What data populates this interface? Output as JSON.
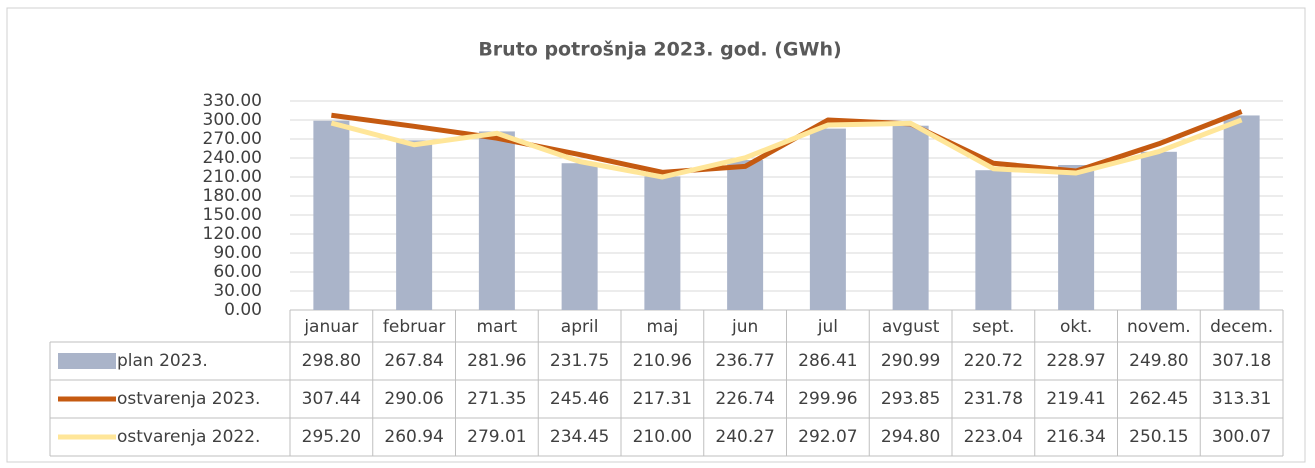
{
  "chart_data": {
    "type": "bar-line-table",
    "title": "Bruto potrošnja 2023.  god. (GWh)",
    "categories": [
      "januar",
      "februar",
      "mart",
      "april",
      "maj",
      "jun",
      "jul",
      "avgust",
      "sept.",
      "okt.",
      "novem.",
      "decem."
    ],
    "series": [
      {
        "name": "plan 2023.",
        "type": "bar",
        "color": "#aab4c9",
        "values": [
          298.8,
          267.84,
          281.96,
          231.75,
          210.96,
          236.77,
          286.41,
          290.99,
          220.72,
          228.97,
          249.8,
          307.18
        ],
        "value_labels": [
          "298.80",
          "267.84",
          "281.96",
          "231.75",
          "210.96",
          "236.77",
          "286.41",
          "290.99",
          "220.72",
          "228.97",
          "249.80",
          "307.18"
        ]
      },
      {
        "name": "ostvarenja 2023.",
        "type": "line",
        "color": "#c55a11",
        "values": [
          307.44,
          290.06,
          271.35,
          245.46,
          217.31,
          226.74,
          299.96,
          293.85,
          231.78,
          219.41,
          262.45,
          313.31
        ],
        "value_labels": [
          "307.44",
          "290.06",
          "271.35",
          "245.46",
          "217.31",
          "226.74",
          "299.96",
          "293.85",
          "231.78",
          "219.41",
          "262.45",
          "313.31"
        ]
      },
      {
        "name": "ostvarenja 2022.",
        "type": "line",
        "color": "#ffe699",
        "values": [
          295.2,
          260.94,
          279.01,
          234.45,
          210,
          240.27,
          292.07,
          294.8,
          223.04,
          216.34,
          250.15,
          300.07
        ],
        "value_labels": [
          "295.20",
          "260.94",
          "279.01",
          "234.45",
          "210.00",
          "240.27",
          "292.07",
          "294.80",
          "223.04",
          "216.34",
          "250.15",
          "300.07"
        ]
      }
    ],
    "ylim": [
      0,
      330
    ],
    "yticks": [
      {
        "value": 0,
        "label": "0.00"
      },
      {
        "value": 30,
        "label": "30.00"
      },
      {
        "value": 60,
        "label": "60.00"
      },
      {
        "value": 90,
        "label": "90.00"
      },
      {
        "value": 120,
        "label": "120.00"
      },
      {
        "value": 150,
        "label": "150.00"
      },
      {
        "value": 180,
        "label": "180.00"
      },
      {
        "value": 210,
        "label": "210.00"
      },
      {
        "value": 240,
        "label": "240.00"
      },
      {
        "value": 270,
        "label": "270.00"
      },
      {
        "value": 300,
        "label": "300.00"
      },
      {
        "value": 330,
        "label": "330.00"
      }
    ],
    "grid": true
  }
}
